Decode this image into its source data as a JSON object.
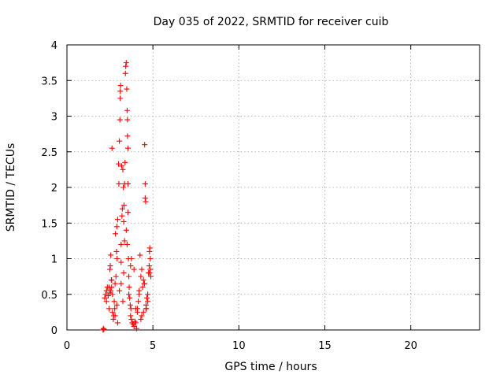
{
  "chart_data": {
    "type": "scatter",
    "title": "Day 035 of 2022, SRMTID for receiver cuib",
    "xlabel": "GPS time / hours",
    "ylabel": "SRMTID / TECUs",
    "xlim": [
      0,
      24
    ],
    "ylim": [
      0,
      4
    ],
    "x_ticks": [
      0,
      5,
      10,
      15,
      20
    ],
    "x_tick_labels": [
      "0",
      "5",
      "10",
      "15",
      "20"
    ],
    "y_ticks": [
      0,
      0.5,
      1,
      1.5,
      2,
      2.5,
      3,
      3.5,
      4
    ],
    "y_tick_labels": [
      "0",
      "0.5",
      "1",
      "1.5",
      "2",
      "2.5",
      "3",
      "3.5",
      "4"
    ],
    "grid": true,
    "marker": "plus",
    "series": [
      {
        "name": "SRMTID",
        "color": "#ff0000",
        "x": [
          2.1,
          2.12,
          2.15,
          2.2,
          2.25,
          2.3,
          2.35,
          2.4,
          2.45,
          2.5,
          2.5,
          2.52,
          2.55,
          2.58,
          2.6,
          2.62,
          2.65,
          2.7,
          2.72,
          2.75,
          2.78,
          2.8,
          2.82,
          2.85,
          2.88,
          2.9,
          2.92,
          2.95,
          3.0,
          3.02,
          3.05,
          3.08,
          3.1,
          3.1,
          3.12,
          3.15,
          3.15,
          3.18,
          3.2,
          3.22,
          3.25,
          3.28,
          3.3,
          3.32,
          3.35,
          3.38,
          3.4,
          3.42,
          3.45,
          3.48,
          3.5,
          3.52,
          3.52,
          3.55,
          3.55,
          3.58,
          3.6,
          3.62,
          3.65,
          3.68,
          3.7,
          3.72,
          3.75,
          3.8,
          3.85,
          3.9,
          3.95,
          4.0,
          4.05,
          4.1,
          4.15,
          4.2,
          4.25,
          4.3,
          4.35,
          4.4,
          4.45,
          4.5,
          4.52,
          4.55,
          4.55,
          4.58,
          4.6,
          4.62,
          4.65,
          4.7,
          4.75,
          4.78,
          4.8,
          4.82,
          4.85,
          4.85,
          4.88,
          2.3,
          2.45,
          2.6,
          2.8,
          3.05,
          3.3,
          3.35,
          3.55,
          3.6,
          3.7,
          4.0,
          4.2,
          4.35,
          4.5,
          4.7,
          2.55,
          2.9,
          3.15,
          3.45,
          3.9,
          4.3,
          4.6,
          4.8,
          2.65,
          2.95,
          3.25,
          3.5,
          3.75,
          4.1,
          4.45
        ],
        "y": [
          0.0,
          0.02,
          0.01,
          0.45,
          0.5,
          0.55,
          0.6,
          0.48,
          0.3,
          0.52,
          0.85,
          0.9,
          1.05,
          0.7,
          0.6,
          2.55,
          0.25,
          0.15,
          0.2,
          0.4,
          0.3,
          0.65,
          1.35,
          0.75,
          1.1,
          1.45,
          1.0,
          1.55,
          2.33,
          2.05,
          2.65,
          2.95,
          3.25,
          3.35,
          3.43,
          1.2,
          0.95,
          2.3,
          1.6,
          1.7,
          2.25,
          2.0,
          1.52,
          1.75,
          2.05,
          2.35,
          3.6,
          3.7,
          3.75,
          3.38,
          3.08,
          2.95,
          2.72,
          2.55,
          2.05,
          1.0,
          0.75,
          0.6,
          0.45,
          0.35,
          0.2,
          0.3,
          0.15,
          0.1,
          0.08,
          0.05,
          0.12,
          0.1,
          0.02,
          0.25,
          0.4,
          0.55,
          1.05,
          0.75,
          0.85,
          0.6,
          0.7,
          0.65,
          2.6,
          2.05,
          1.85,
          1.8,
          0.35,
          0.3,
          0.45,
          0.5,
          0.8,
          0.9,
          1.1,
          1.15,
          1.0,
          0.85,
          0.75,
          0.4,
          0.6,
          0.7,
          0.2,
          0.55,
          0.8,
          1.25,
          1.65,
          0.5,
          0.9,
          0.3,
          0.5,
          0.2,
          0.65,
          0.4,
          0.55,
          0.35,
          0.65,
          1.4,
          0.85,
          0.15,
          0.3,
          0.8,
          0.5,
          0.1,
          0.4,
          1.2,
          1.0,
          0.3,
          0.25
        ]
      }
    ]
  }
}
